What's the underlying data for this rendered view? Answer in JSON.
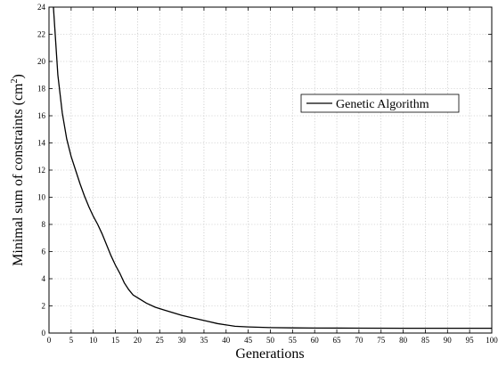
{
  "chart_data": {
    "type": "line",
    "title": "",
    "xlabel": "Generations",
    "ylabel_main": "Minimal sum of constraints (cm",
    "ylabel_sup": "2",
    "ylabel_end": ")",
    "xlim": [
      0,
      100
    ],
    "ylim": [
      0,
      24
    ],
    "xticks": [
      0,
      5,
      10,
      15,
      20,
      25,
      30,
      35,
      40,
      45,
      50,
      55,
      60,
      65,
      70,
      75,
      80,
      85,
      90,
      95,
      100
    ],
    "yticks": [
      0,
      2,
      4,
      6,
      8,
      10,
      12,
      14,
      16,
      18,
      20,
      22,
      24
    ],
    "grid": true,
    "legend_position": "right",
    "series": [
      {
        "name": "Genetic Algorithm",
        "color": "#000000",
        "x": [
          1,
          2,
          3,
          4,
          5,
          6,
          7,
          8,
          9,
          10,
          11,
          12,
          13,
          14,
          15,
          16,
          17,
          18,
          19,
          20,
          22,
          24,
          26,
          28,
          30,
          32,
          34,
          36,
          38,
          40,
          42,
          45,
          50,
          55,
          60,
          70,
          80,
          90,
          100
        ],
        "y": [
          24,
          19,
          16.2,
          14.3,
          13,
          12,
          11,
          10.1,
          9.3,
          8.6,
          8,
          7.3,
          6.5,
          5.7,
          5,
          4.4,
          3.7,
          3.2,
          2.8,
          2.6,
          2.2,
          1.9,
          1.7,
          1.5,
          1.3,
          1.15,
          1.0,
          0.85,
          0.7,
          0.6,
          0.5,
          0.45,
          0.4,
          0.38,
          0.37,
          0.36,
          0.35,
          0.35,
          0.35
        ]
      }
    ]
  }
}
